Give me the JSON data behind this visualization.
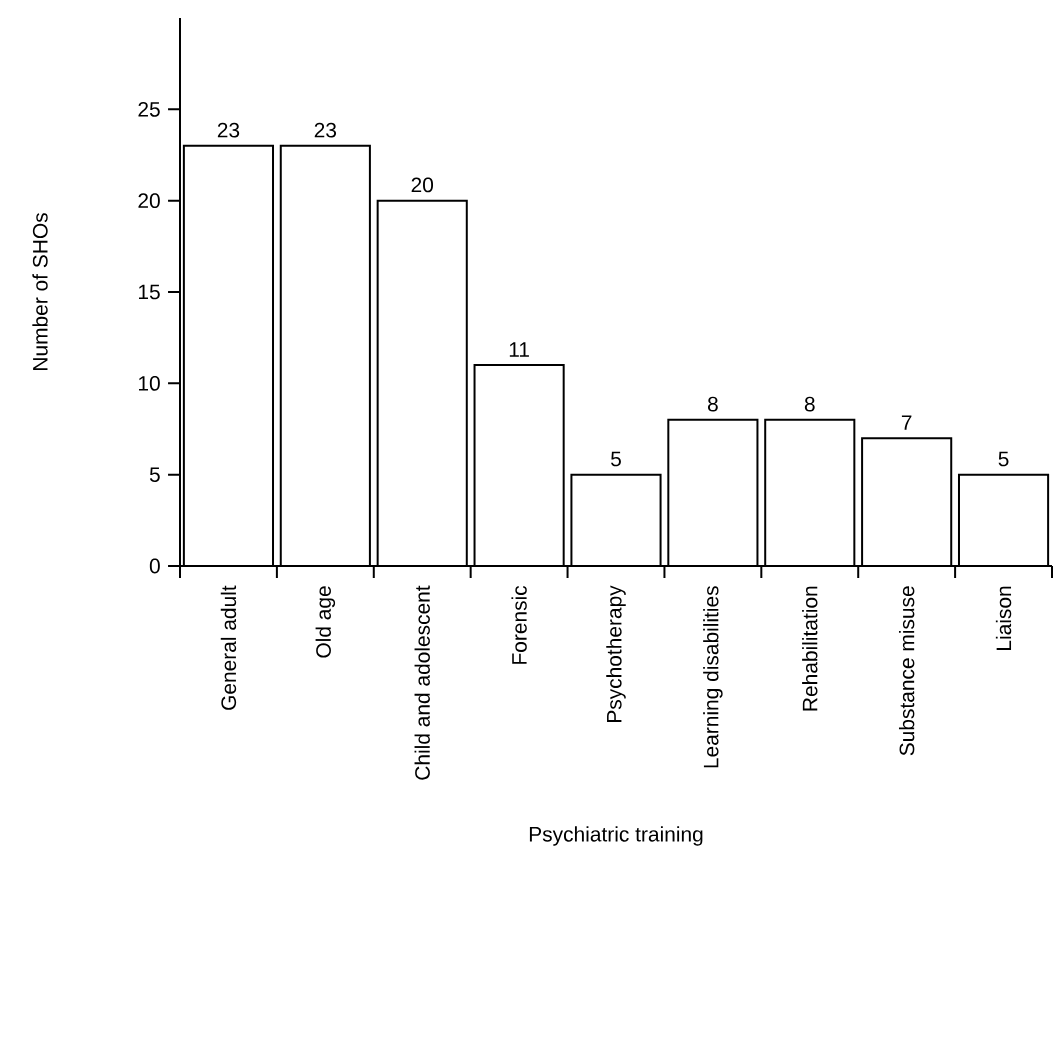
{
  "chart_data": {
    "type": "bar",
    "xlabel": "Psychiatric training",
    "ylabel": "Number of SHOs",
    "categories": [
      "General adult",
      "Old age",
      "Child and adolescent",
      "Forensic",
      "Psychotherapy",
      "Learning disabilities",
      "Rehabilitation",
      "Substance misuse",
      "Liaison"
    ],
    "values": [
      23,
      23,
      20,
      11,
      5,
      8,
      8,
      7,
      5
    ],
    "color": "#ffffff",
    "ylim": [
      0,
      30
    ],
    "yticks": [
      0,
      5,
      10,
      15,
      20,
      25
    ],
    "data_labels": true
  }
}
